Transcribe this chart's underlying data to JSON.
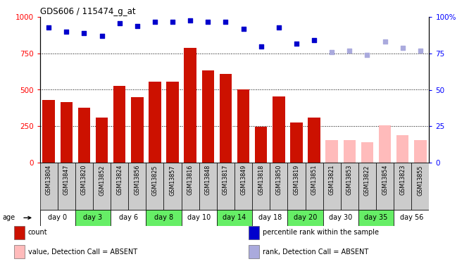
{
  "title": "GDS606 / 115474_g_at",
  "samples": [
    "GSM13804",
    "GSM13847",
    "GSM13820",
    "GSM13852",
    "GSM13824",
    "GSM13856",
    "GSM13825",
    "GSM13857",
    "GSM13816",
    "GSM13848",
    "GSM13817",
    "GSM13849",
    "GSM13818",
    "GSM13850",
    "GSM13819",
    "GSM13851",
    "GSM13821",
    "GSM13853",
    "GSM13822",
    "GSM13854",
    "GSM13823",
    "GSM13855"
  ],
  "counts": [
    430,
    415,
    375,
    310,
    525,
    450,
    555,
    555,
    790,
    635,
    610,
    500,
    245,
    455,
    275,
    310,
    155,
    155,
    140,
    255,
    185,
    155
  ],
  "absent": [
    false,
    false,
    false,
    false,
    false,
    false,
    false,
    false,
    false,
    false,
    false,
    false,
    false,
    false,
    false,
    false,
    true,
    true,
    true,
    true,
    true,
    true
  ],
  "percentile_rank": [
    93,
    90,
    89,
    87,
    96,
    94,
    97,
    97,
    98,
    97,
    97,
    92,
    80,
    93,
    82,
    84,
    76,
    77,
    74,
    83,
    79,
    77
  ],
  "age_groups": [
    {
      "label": "day 0",
      "start": 0,
      "end": 1,
      "green": false
    },
    {
      "label": "day 3",
      "start": 2,
      "end": 3,
      "green": true
    },
    {
      "label": "day 6",
      "start": 4,
      "end": 5,
      "green": false
    },
    {
      "label": "day 8",
      "start": 6,
      "end": 7,
      "green": true
    },
    {
      "label": "day 10",
      "start": 8,
      "end": 9,
      "green": false
    },
    {
      "label": "day 14",
      "start": 10,
      "end": 11,
      "green": true
    },
    {
      "label": "day 18",
      "start": 12,
      "end": 13,
      "green": false
    },
    {
      "label": "day 20",
      "start": 14,
      "end": 15,
      "green": true
    },
    {
      "label": "day 30",
      "start": 16,
      "end": 17,
      "green": false
    },
    {
      "label": "day 35",
      "start": 18,
      "end": 19,
      "green": true
    },
    {
      "label": "day 56",
      "start": 20,
      "end": 21,
      "green": false
    }
  ],
  "bar_color_present": "#cc1100",
  "bar_color_absent": "#ffbbbb",
  "dot_color_present": "#0000cc",
  "dot_color_absent": "#aaaadd",
  "green_color": "#66ee66",
  "white_color": "#ffffff",
  "sample_cell_color": "#cccccc",
  "legend_items": [
    {
      "label": "count",
      "color": "#cc1100"
    },
    {
      "label": "percentile rank within the sample",
      "color": "#0000cc"
    },
    {
      "label": "value, Detection Call = ABSENT",
      "color": "#ffbbbb"
    },
    {
      "label": "rank, Detection Call = ABSENT",
      "color": "#aaaadd"
    }
  ]
}
